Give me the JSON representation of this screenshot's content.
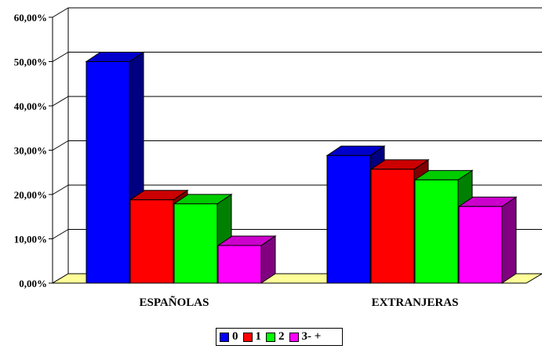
{
  "chart_data": {
    "type": "bar",
    "categories": [
      "ESPAÑOLAS",
      "EXTRANJERAS"
    ],
    "series": [
      {
        "name": "0",
        "values": [
          50.0,
          28.8
        ],
        "color": "#0000ff",
        "top": "#0000cc",
        "side": "#000080"
      },
      {
        "name": "1",
        "values": [
          18.8,
          25.7
        ],
        "color": "#ff0000",
        "top": "#cc0000",
        "side": "#800000"
      },
      {
        "name": "2",
        "values": [
          17.9,
          23.3
        ],
        "color": "#00ff00",
        "top": "#00cc00",
        "side": "#008000"
      },
      {
        "name": "3- +",
        "values": [
          8.5,
          17.3
        ],
        "color": "#ff00ff",
        "top": "#cc00cc",
        "side": "#800080"
      }
    ],
    "ylim": [
      0,
      60
    ],
    "yticks": [
      "0,00%",
      "10,00%",
      "20,00%",
      "30,00%",
      "40,00%",
      "50,00%",
      "60,00%"
    ],
    "grid": true,
    "legend_position": "bottom",
    "floor_color": "#ffff99"
  }
}
